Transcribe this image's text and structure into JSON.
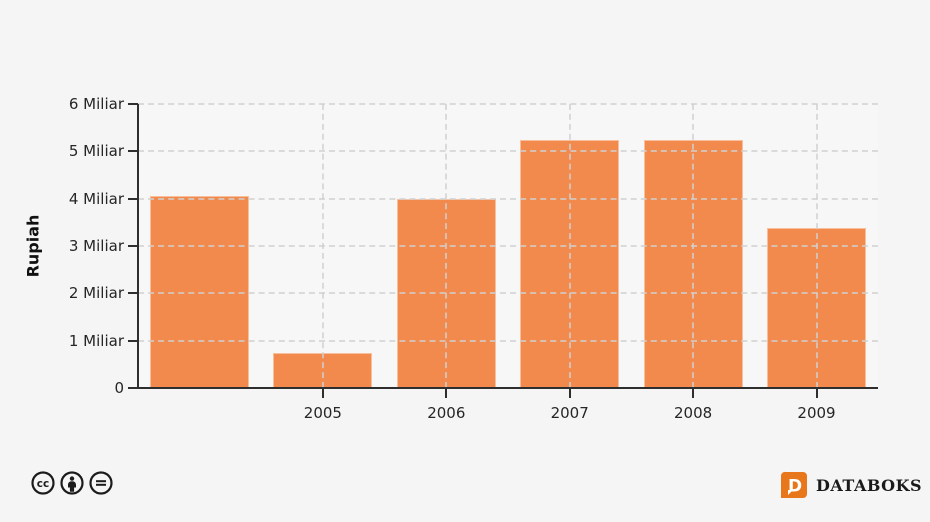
{
  "chart_data": {
    "type": "bar",
    "title": "",
    "xlabel": "",
    "ylabel": "Rupiah",
    "categories": [
      "",
      "2005",
      "2006",
      "2007",
      "2008",
      "2009"
    ],
    "values": [
      4.05,
      0.75,
      4.0,
      5.25,
      5.25,
      3.38
    ],
    "ylim": [
      0,
      6
    ],
    "ytick_values": [
      0,
      1,
      2,
      3,
      4,
      5,
      6
    ],
    "ytick_labels": [
      "0",
      "1 Miliar",
      "2 Miliar",
      "3 Miliar",
      "4 Miliar",
      "5 Miliar",
      "6 Miliar"
    ],
    "grid": true,
    "legend": false,
    "bar_color": "#F28A4D"
  },
  "footer": {
    "license_icons": [
      "cc-icon",
      "attribution-icon",
      "no-derivatives-icon"
    ],
    "brand": {
      "name": "DATABOKS",
      "logo_letter": "D",
      "logo_color": "#E8761B"
    }
  },
  "colors": {
    "background": "#F5F5F5",
    "plot_background": "#F7F7F7",
    "axis": "#2E2E2E",
    "gridline": "#D0D0D0",
    "bar": "#F28A4D",
    "tick_label": "#262626"
  }
}
